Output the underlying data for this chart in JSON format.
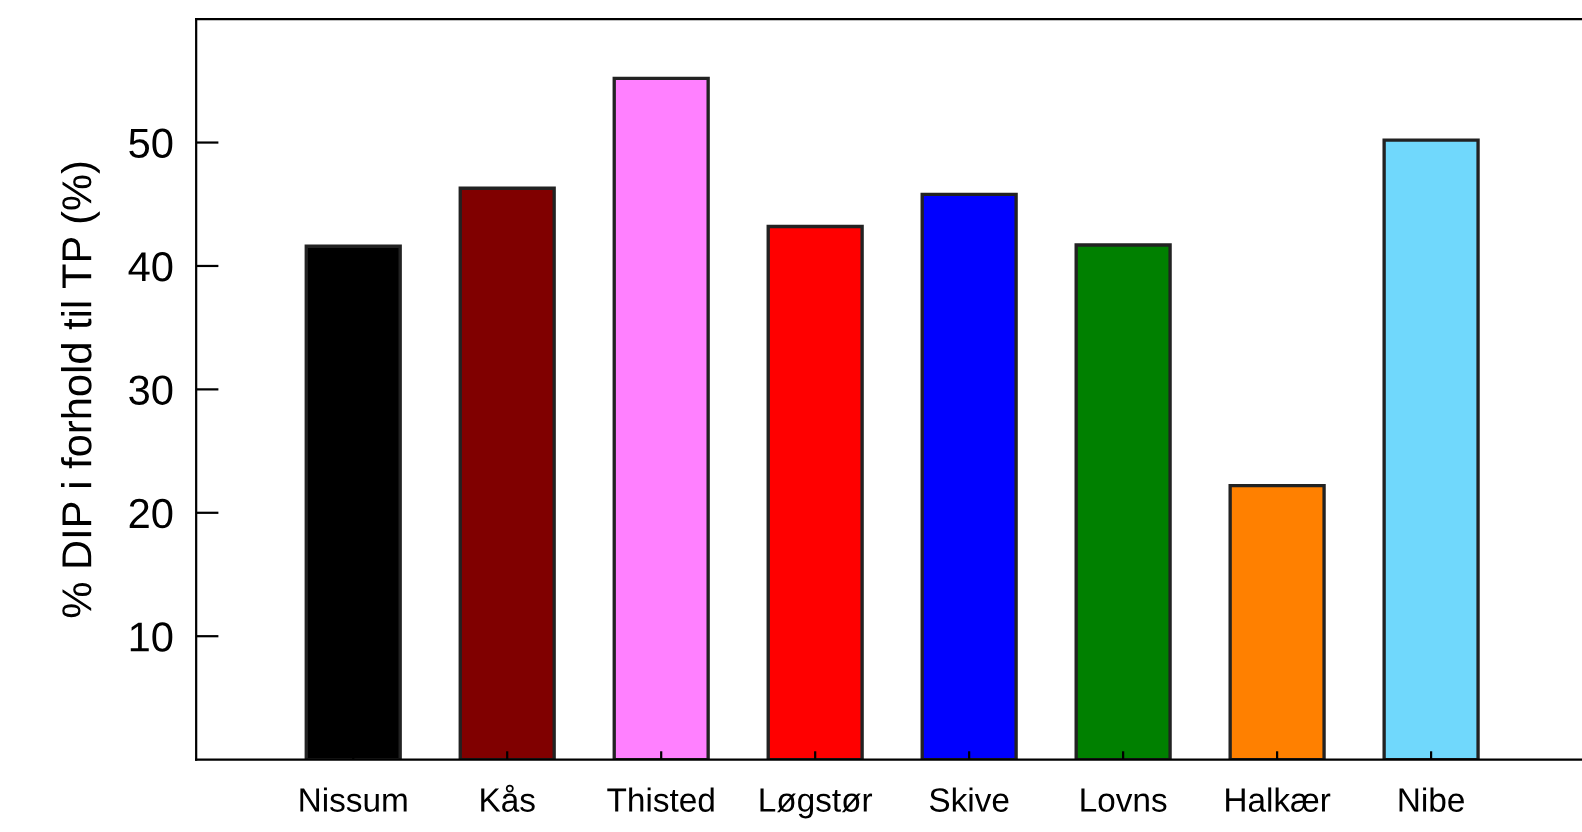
{
  "chart_data": {
    "type": "bar",
    "ylabel": "% DIP i forhold til TP (%)",
    "categories": [
      "Nissum",
      "Kås",
      "Thisted",
      "Løgstør",
      "Skive",
      "Lovns",
      "Halkær",
      "Nibe"
    ],
    "values": [
      41.6,
      46.3,
      55.2,
      43.2,
      45.8,
      41.7,
      22.2,
      50.2
    ],
    "colors": [
      "#000000",
      "#800000",
      "#ff80ff",
      "#ff0000",
      "#0000ff",
      "#008000",
      "#ff8000",
      "#70d8fc"
    ],
    "ylim": [
      0,
      60
    ],
    "yticks": [
      10,
      20,
      30,
      40,
      50
    ],
    "grid": false,
    "legend": false
  }
}
